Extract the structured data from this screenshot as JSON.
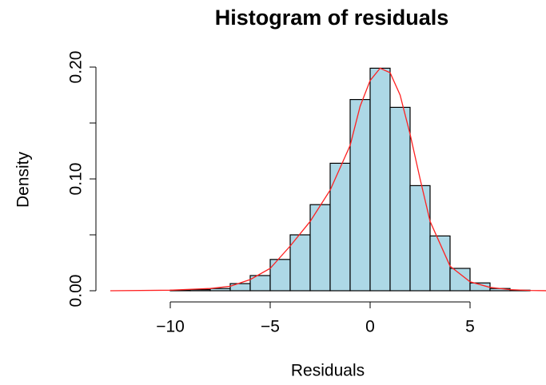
{
  "chart_data": {
    "type": "histogram",
    "title": "Histogram of residuals",
    "x_label": "Residuals",
    "y_label": "Density",
    "bins": [
      -10,
      -9,
      -8,
      -7,
      -6,
      -5,
      -4,
      -3,
      -2,
      -1,
      0,
      1,
      2,
      3,
      4,
      5,
      6,
      7,
      8
    ],
    "values": [
      0.0005,
      0.001,
      0.002,
      0.0064,
      0.0136,
      0.028,
      0.05,
      0.077,
      0.114,
      0.171,
      0.199,
      0.164,
      0.094,
      0.049,
      0.02,
      0.007,
      0.002,
      0.0005
    ],
    "color": "#add8e6",
    "density": {
      "color": "#ff2020",
      "x": [
        -13,
        -10,
        -8,
        -7,
        -6,
        -5,
        -4,
        -3,
        -2,
        -1,
        -0.5,
        0,
        0.5,
        1,
        1.5,
        2,
        2.5,
        3,
        4,
        5,
        6,
        7,
        8,
        9
      ],
      "values": [
        0,
        0.0005,
        0.002,
        0.004,
        0.01,
        0.02,
        0.04,
        0.062,
        0.09,
        0.13,
        0.165,
        0.188,
        0.199,
        0.195,
        0.175,
        0.14,
        0.1,
        0.062,
        0.022,
        0.008,
        0.003,
        0.001,
        0.0003,
        0
      ]
    },
    "xlim": [
      -13.2,
      8.8
    ],
    "ylim": [
      0,
      0.2
    ],
    "xticks": [
      {
        "value": -10,
        "label": "−10"
      },
      {
        "value": -5,
        "label": "−5"
      },
      0,
      5
    ],
    "yticks": [
      {
        "value": 0,
        "label": "0.00"
      },
      {
        "value": 0.1,
        "label": "0.10"
      },
      {
        "value": 0.2,
        "label": "0.20"
      }
    ],
    "yminorticks": [
      0.05,
      0.15
    ]
  }
}
